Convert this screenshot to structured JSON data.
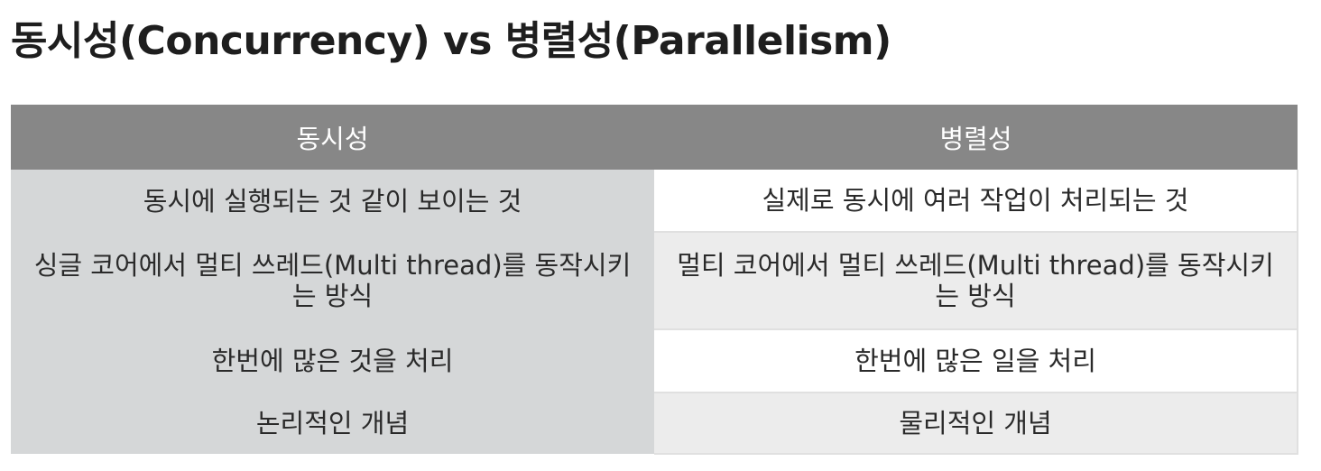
{
  "title": "동시성(Concurrency) vs 병렬성(Parallelism)",
  "table": {
    "headers": [
      "동시성",
      "병렬성"
    ],
    "rows": [
      [
        "동시에 실행되는 것 같이 보이는 것",
        "실제로 동시에 여러 작업이 처리되는 것"
      ],
      [
        "싱글 코어에서 멀티 쓰레드(Multi thread)를 동작시키는 방식",
        "멀티 코어에서 멀티 쓰레드(Multi thread)를 동작시키는 방식"
      ],
      [
        "한번에 많은 것을 처리",
        "한번에 많은 일을 처리"
      ],
      [
        "논리적인 개념",
        "물리적인 개념"
      ]
    ]
  },
  "colors": {
    "header_bg": "#878787",
    "header_text": "#ffffff",
    "left_column_bg": "#d5d7d8",
    "right_alt_row_bg": "#ececec",
    "text": "#2a2a2a"
  }
}
